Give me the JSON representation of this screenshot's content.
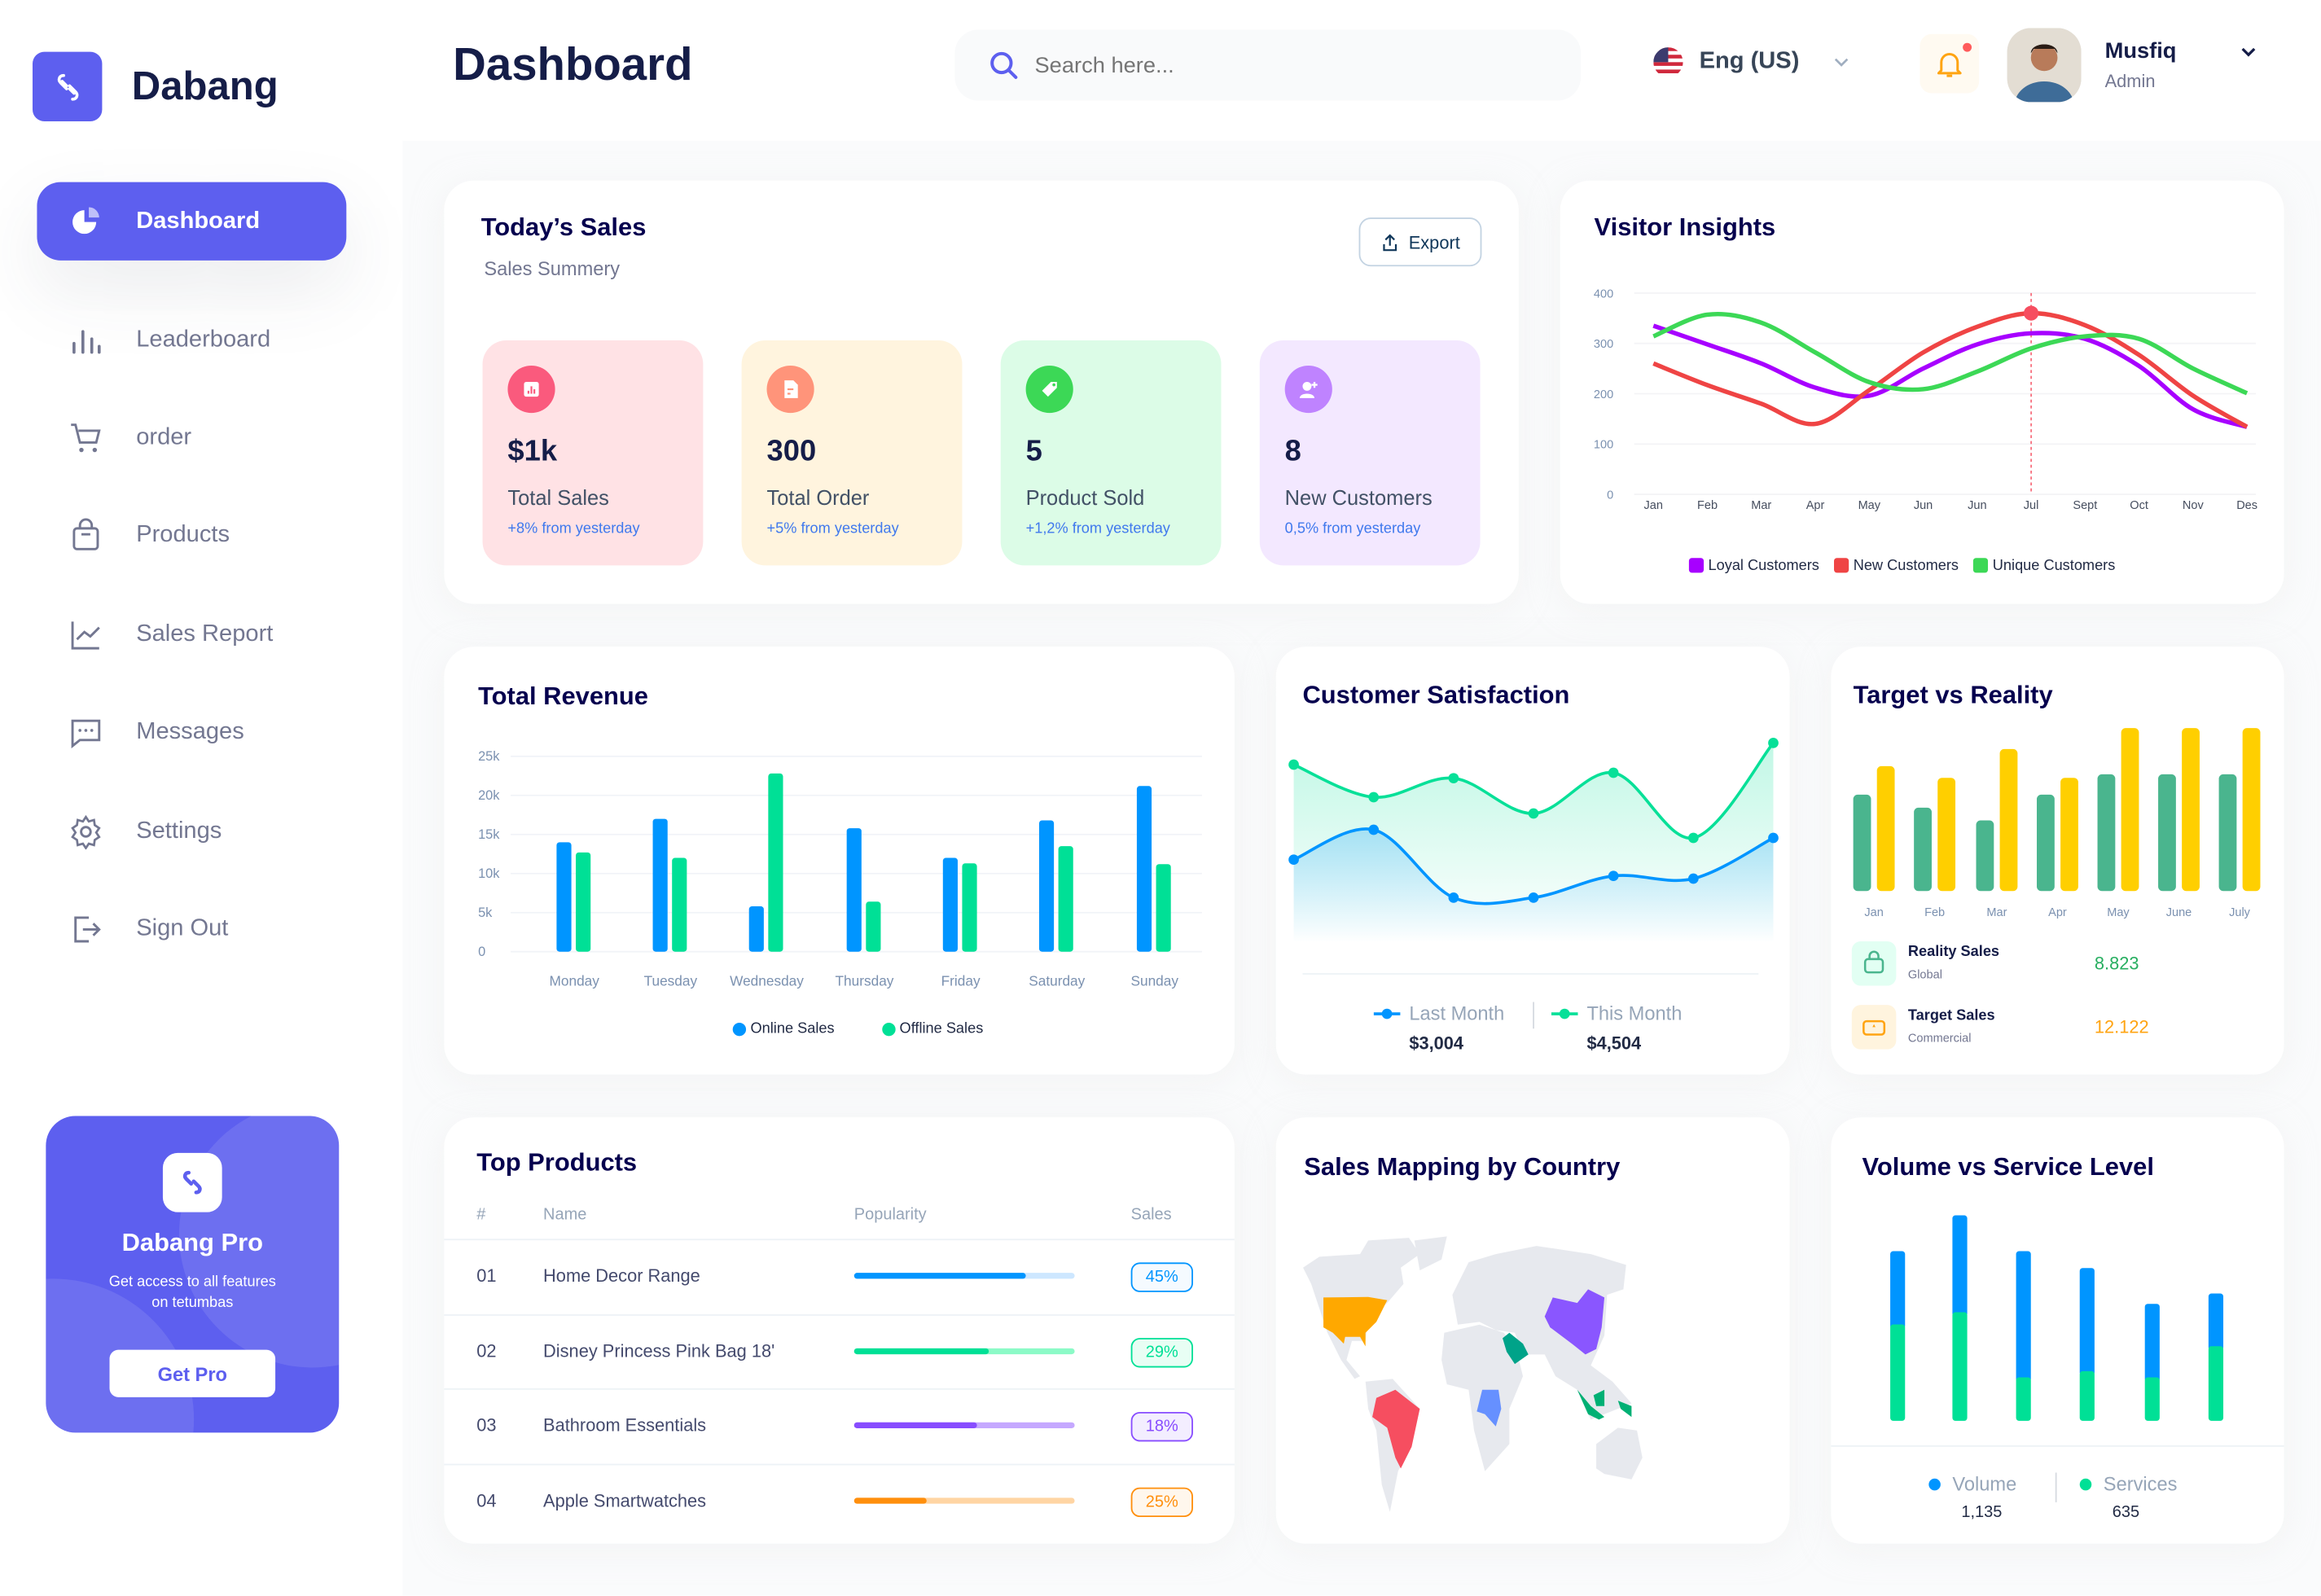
{
  "app": {
    "brand": "Dabang"
  },
  "header": {
    "title": "Dashboard",
    "search_placeholder": "Search here...",
    "language": "Eng (US)",
    "user_name": "Musfiq",
    "user_role": "Admin",
    "notification_dot": true
  },
  "sidebar": {
    "items": [
      {
        "label": "Dashboard",
        "icon": "pie-chart-icon",
        "active": true
      },
      {
        "label": "Leaderboard",
        "icon": "bar-chart-icon"
      },
      {
        "label": "order",
        "icon": "cart-icon"
      },
      {
        "label": "Products",
        "icon": "shopping-bag-icon"
      },
      {
        "label": "Sales Report",
        "icon": "line-chart-icon"
      },
      {
        "label": "Messages",
        "icon": "message-icon"
      },
      {
        "label": "Settings",
        "icon": "gear-icon"
      },
      {
        "label": "Sign Out",
        "icon": "sign-out-icon"
      }
    ],
    "promo": {
      "title": "Dabang Pro",
      "text": "Get access to all features on tetumbas",
      "button": "Get Pro"
    }
  },
  "todays_sales": {
    "title": "Today’s Sales",
    "subtitle": "Sales Summery",
    "export_label": "Export",
    "cards": [
      {
        "value": "$1k",
        "label": "Total Sales",
        "change": "+8% from yesterday",
        "bg": "#FFE2E5",
        "icon_bg": "#FA5A7D",
        "icon": "chart-icon"
      },
      {
        "value": "300",
        "label": "Total Order",
        "change": "+5% from yesterday",
        "bg": "#FFF4DE",
        "icon_bg": "#FF947A",
        "icon": "document-icon"
      },
      {
        "value": "5",
        "label": "Product Sold",
        "change": "+1,2% from yesterday",
        "bg": "#DCFCE7",
        "icon_bg": "#3CD856",
        "icon": "tag-icon"
      },
      {
        "value": "8",
        "label": "New Customers",
        "change": "0,5% from yesterday",
        "bg": "#F3E8FF",
        "icon_bg": "#BF83FF",
        "icon": "add-user-icon"
      }
    ]
  },
  "top_products": {
    "title": "Top Products",
    "headers": [
      "#",
      "Name",
      "Popularity",
      "Sales"
    ],
    "rows": [
      {
        "num": "01",
        "name": "Home Decor Range",
        "popularity": 0.78,
        "sales": "45%",
        "color": "#0095FF",
        "light": "#CDE7FF"
      },
      {
        "num": "02",
        "name": "Disney Princess Pink Bag 18'",
        "popularity": 0.61,
        "sales": "29%",
        "color": "#00E096",
        "light": "#8CFAC7"
      },
      {
        "num": "03",
        "name": "Bathroom Essentials",
        "popularity": 0.56,
        "sales": "18%",
        "color": "#884DFF",
        "light": "#C5A8FF"
      },
      {
        "num": "04",
        "name": "Apple Smartwatches",
        "popularity": 0.33,
        "sales": "25%",
        "color": "#FF8F0D",
        "light": "#FFD5A4"
      }
    ]
  },
  "sales_mapping": {
    "title": "Sales Mapping by Country",
    "highlighted": [
      {
        "country": "United States",
        "color": "#FFA800"
      },
      {
        "country": "Brazil",
        "color": "#F64E60"
      },
      {
        "country": "Saudi Arabia",
        "color": "#00A389"
      },
      {
        "country": "DR Congo",
        "color": "#6690FF"
      },
      {
        "country": "China",
        "color": "#8A56FF"
      },
      {
        "country": "Indonesia",
        "color": "#00B074"
      }
    ]
  },
  "chart_data": [
    {
      "type": "line",
      "title": "Visitor Insights",
      "categories": [
        "Jan",
        "Feb",
        "Mar",
        "Apr",
        "May",
        "Jun",
        "Jun",
        "Jul",
        "Sept",
        "Oct",
        "Nov",
        "Des"
      ],
      "yticks": [
        "0",
        "100",
        "200",
        "300",
        "400"
      ],
      "ylim": [
        0,
        400
      ],
      "grid": true,
      "legend": "bottom",
      "highlight": {
        "series": 1,
        "index": 7
      },
      "series": [
        {
          "name": "Loyal Customers",
          "color": "#A700FF",
          "values": [
            335,
            298,
            260,
            212,
            196,
            250,
            298,
            320,
            309,
            255,
            169,
            134
          ]
        },
        {
          "name": "New Customers",
          "color": "#EF4444",
          "values": [
            260,
            217,
            180,
            140,
            207,
            282,
            333,
            360,
            336,
            277,
            196,
            134
          ]
        },
        {
          "name": "Unique Customers",
          "color": "#3CD856",
          "values": [
            314,
            357,
            341,
            282,
            223,
            209,
            244,
            290,
            314,
            309,
            250,
            201
          ]
        }
      ]
    },
    {
      "type": "bar",
      "title": "Total Revenue",
      "categories": [
        "Monday",
        "Tuesday",
        "Wednesday",
        "Thursday",
        "Friday",
        "Saturday",
        "Sunday"
      ],
      "yticks": [
        "0",
        "5k",
        "10k",
        "15k",
        "20k",
        "25k"
      ],
      "ylim": [
        0,
        25000
      ],
      "grid": true,
      "legend": "bottom",
      "series": [
        {
          "name": "Online Sales",
          "color": "#0095FF",
          "values": [
            14000,
            17000,
            5800,
            15800,
            12000,
            16800,
            21200
          ]
        },
        {
          "name": "Offline Sales",
          "color": "#00E096",
          "values": [
            12700,
            12000,
            22800,
            6400,
            11300,
            13500,
            11200
          ]
        }
      ]
    },
    {
      "type": "area",
      "title": "Customer Satisfaction",
      "legend": "bottom",
      "series": [
        {
          "name": "Last Month",
          "total": "$3,004",
          "color": "#0095FF",
          "values": [
            29,
            40,
            15,
            15,
            23,
            22,
            37
          ]
        },
        {
          "name": "This Month",
          "total": "$4,504",
          "color": "#07E098",
          "values": [
            64,
            52,
            59,
            46,
            61,
            37,
            72
          ]
        }
      ]
    },
    {
      "type": "bar",
      "title": "Target vs Reality",
      "categories": [
        "Jan",
        "Feb",
        "Mar",
        "Apr",
        "May",
        "June",
        "July"
      ],
      "series": [
        {
          "name": "Reality Sales",
          "sub": "Global",
          "total": "8.823",
          "color": "#4AB58E",
          "icon": "shopping-bag-icon",
          "values": [
            355,
            307,
            260,
            355,
            430,
            430,
            430
          ]
        },
        {
          "name": "Target Sales",
          "sub": "Commercial",
          "total": "12.122",
          "color": "#FFCF00",
          "icon": "ticket-icon",
          "values": [
            460,
            417,
            523,
            417,
            600,
            600,
            600
          ]
        }
      ]
    },
    {
      "type": "bar",
      "stacked": true,
      "title": "Volume vs Service Level",
      "legend": "bottom",
      "series": [
        {
          "name": "Volume",
          "total": "1,135",
          "color": "#0095FF",
          "values": [
            270,
            357,
            465,
            380,
            271,
            194
          ]
        },
        {
          "name": "Services",
          "total": "635",
          "color": "#00E096",
          "values": [
            355,
            400,
            160,
            183,
            160,
            275
          ]
        }
      ]
    }
  ]
}
